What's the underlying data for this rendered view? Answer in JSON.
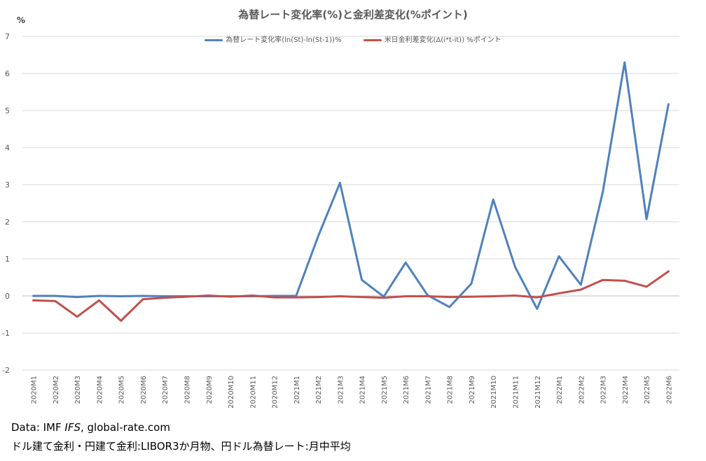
{
  "title": "為替レート変化率(%)と金利差変化(%ポイント)",
  "y_unit": "%",
  "footer": {
    "source_prefix": "Data: IMF ",
    "source_italic": "IFS",
    "source_suffix": ", global-rate.com",
    "note": "ドル建て金利・円建て金利:LIBOR3か月物、円ドル為替レート:月中平均"
  },
  "chart_data": {
    "type": "line",
    "title": "為替レート変化率(%)と金利差変化(%ポイント)",
    "ylabel": "%",
    "ylim": [
      -2,
      7
    ],
    "yticks": [
      -2,
      -1,
      0,
      1,
      2,
      3,
      4,
      5,
      6,
      7
    ],
    "grid": true,
    "legend_position": "top",
    "x": [
      "2020M1",
      "2020M2",
      "2020M3",
      "2020M4",
      "2020M5",
      "2020M6",
      "2020M7",
      "2020M8",
      "2020M9",
      "2020M10",
      "2020M11",
      "2020M12",
      "2021M1",
      "2021M2",
      "2021M3",
      "2021M4",
      "2021M5",
      "2021M6",
      "2021M7",
      "2021M8",
      "2021M9",
      "2021M10",
      "2021M11",
      "2021M12",
      "2022M1",
      "2022M2",
      "2022M3",
      "2022M4",
      "2022M5",
      "2022M6"
    ],
    "series": [
      {
        "name": "為替レート変化率(ln(St)-ln(St-1))%",
        "color": "#4f81bd",
        "values": [
          0.0,
          0.0,
          -0.03,
          0.0,
          -0.01,
          0.0,
          -0.01,
          -0.01,
          -0.01,
          -0.01,
          -0.01,
          0.0,
          0.0,
          1.6,
          3.05,
          0.43,
          -0.02,
          0.9,
          0.02,
          -0.3,
          0.33,
          2.6,
          0.78,
          -0.35,
          1.07,
          0.3,
          2.8,
          6.3,
          2.07,
          5.17
        ]
      },
      {
        "name": "米日金利差変化(Δ(i*t-it)) %ポイント",
        "color": "#c0504d",
        "values": [
          -0.12,
          -0.14,
          -0.56,
          -0.12,
          -0.67,
          -0.09,
          -0.05,
          -0.02,
          0.01,
          -0.02,
          0.01,
          -0.04,
          -0.04,
          -0.03,
          -0.01,
          -0.03,
          -0.05,
          -0.01,
          -0.01,
          -0.03,
          -0.02,
          -0.01,
          0.01,
          -0.04,
          0.07,
          0.17,
          0.43,
          0.41,
          0.25,
          0.66
        ]
      }
    ]
  }
}
